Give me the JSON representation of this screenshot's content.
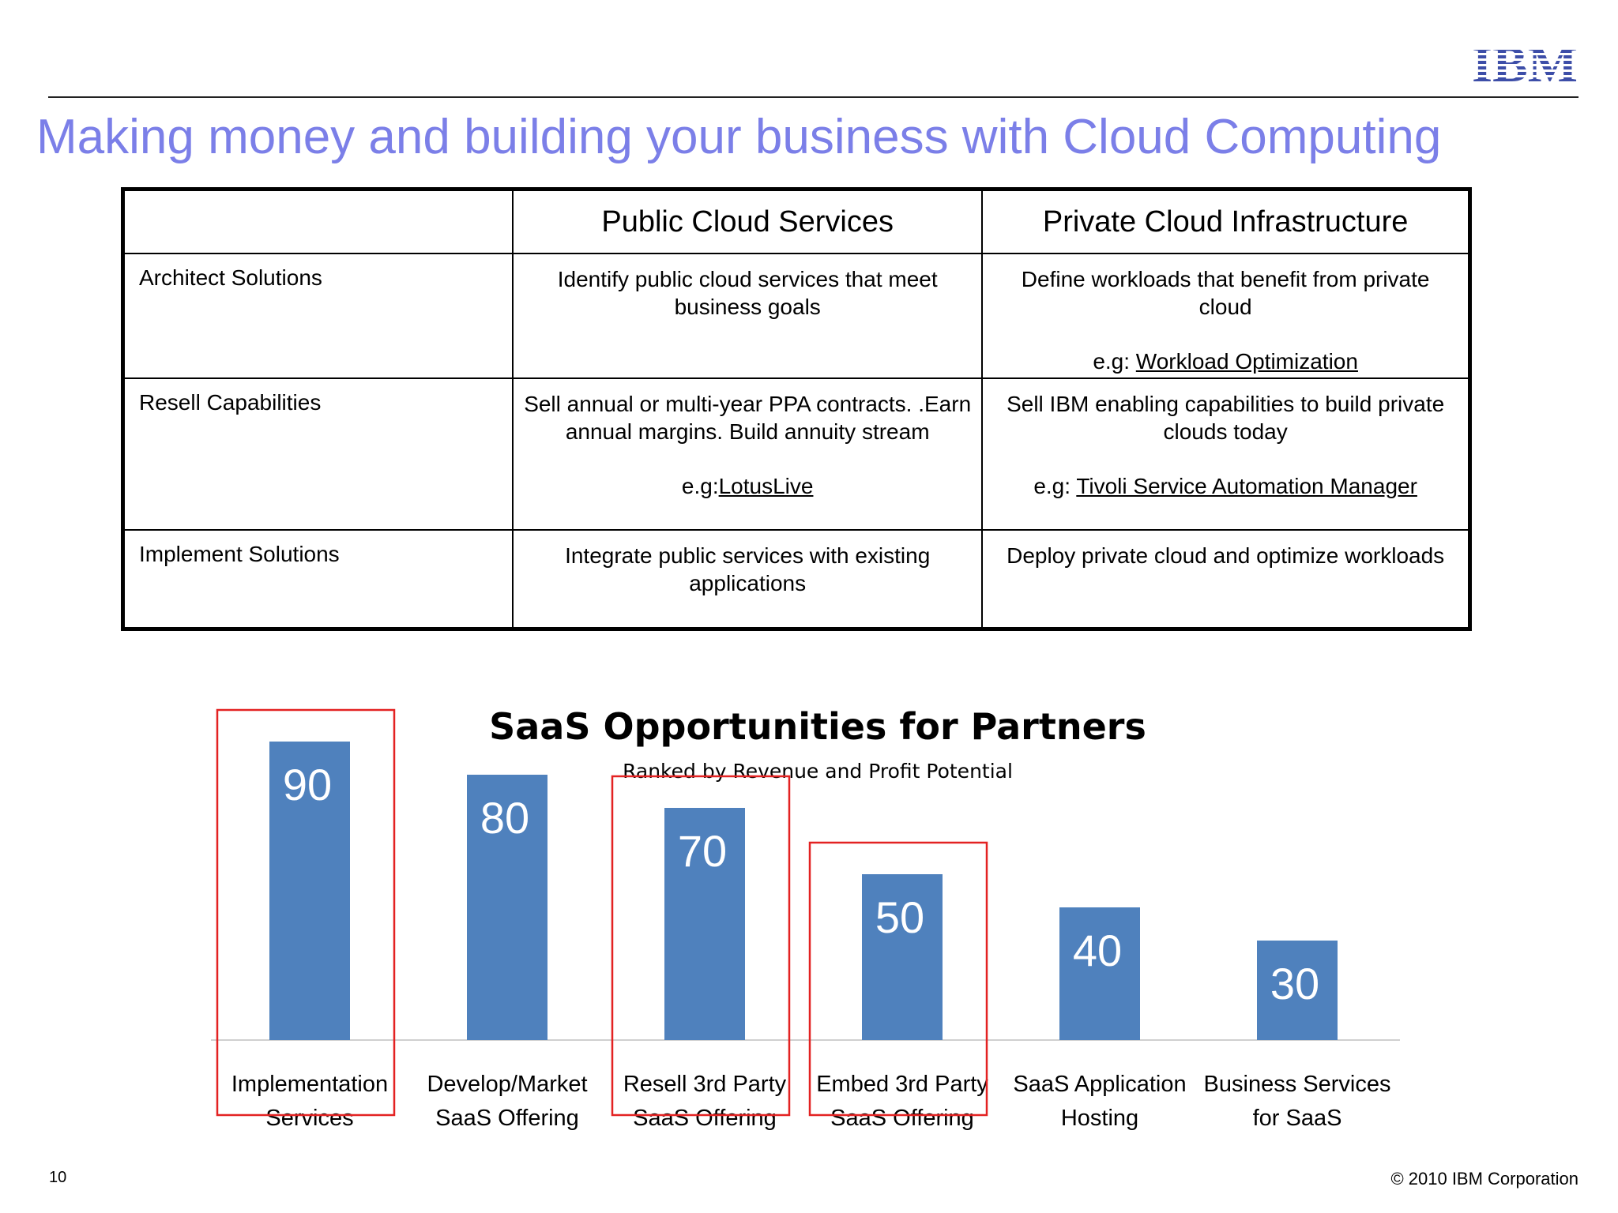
{
  "header": {
    "logo_text": "IBM",
    "title": "Making money and building your business with Cloud Computing"
  },
  "table": {
    "columns": [
      "",
      "Public Cloud Services",
      "Private Cloud Infrastructure"
    ],
    "rows": [
      {
        "label": "Architect Solutions",
        "public": {
          "text": "Identify public cloud services that meet business goals",
          "example_prefix": "",
          "example_link": ""
        },
        "private": {
          "text": "Define workloads that benefit from private cloud",
          "example_prefix": "e.g: ",
          "example_link": "Workload Optimization"
        }
      },
      {
        "label": "Resell Capabilities",
        "public": {
          "text": "Sell annual or multi-year PPA contracts. .Earn annual margins. Build annuity stream",
          "example_prefix": "e.g:",
          "example_link": "LotusLive"
        },
        "private": {
          "text": "Sell IBM enabling capabilities to build private clouds today",
          "example_prefix": "e.g: ",
          "example_link": "Tivoli Service Automation Manager"
        }
      },
      {
        "label": "Implement Solutions",
        "public": {
          "text": "Integrate public services with existing applications",
          "example_prefix": "",
          "example_link": ""
        },
        "private": {
          "text": "Deploy private cloud and optimize workloads",
          "example_prefix": "",
          "example_link": ""
        }
      }
    ]
  },
  "chart_data": {
    "type": "bar",
    "title": "SaaS Opportunities for Partners",
    "subtitle": "Ranked by Revenue and Profit Potential",
    "categories": [
      [
        "Implementation",
        "Services"
      ],
      [
        "Develop/Market",
        "SaaS Offering"
      ],
      [
        "Resell 3rd Party",
        "SaaS Offering"
      ],
      [
        "Embed 3rd Party",
        "SaaS Offering"
      ],
      [
        "SaaS Application",
        "Hosting"
      ],
      [
        "Business Services",
        "for SaaS"
      ]
    ],
    "values": [
      90,
      80,
      70,
      50,
      40,
      30
    ],
    "highlighted": [
      true,
      false,
      true,
      true,
      false,
      false
    ],
    "ylim": [
      0,
      100
    ],
    "grid": false,
    "bar_color": "#4f81bd",
    "highlight_color": "#e32222",
    "data_label_color": "#ffffff"
  },
  "footer": {
    "page_number": "10",
    "copyright": "© 2010 IBM Corporation"
  }
}
